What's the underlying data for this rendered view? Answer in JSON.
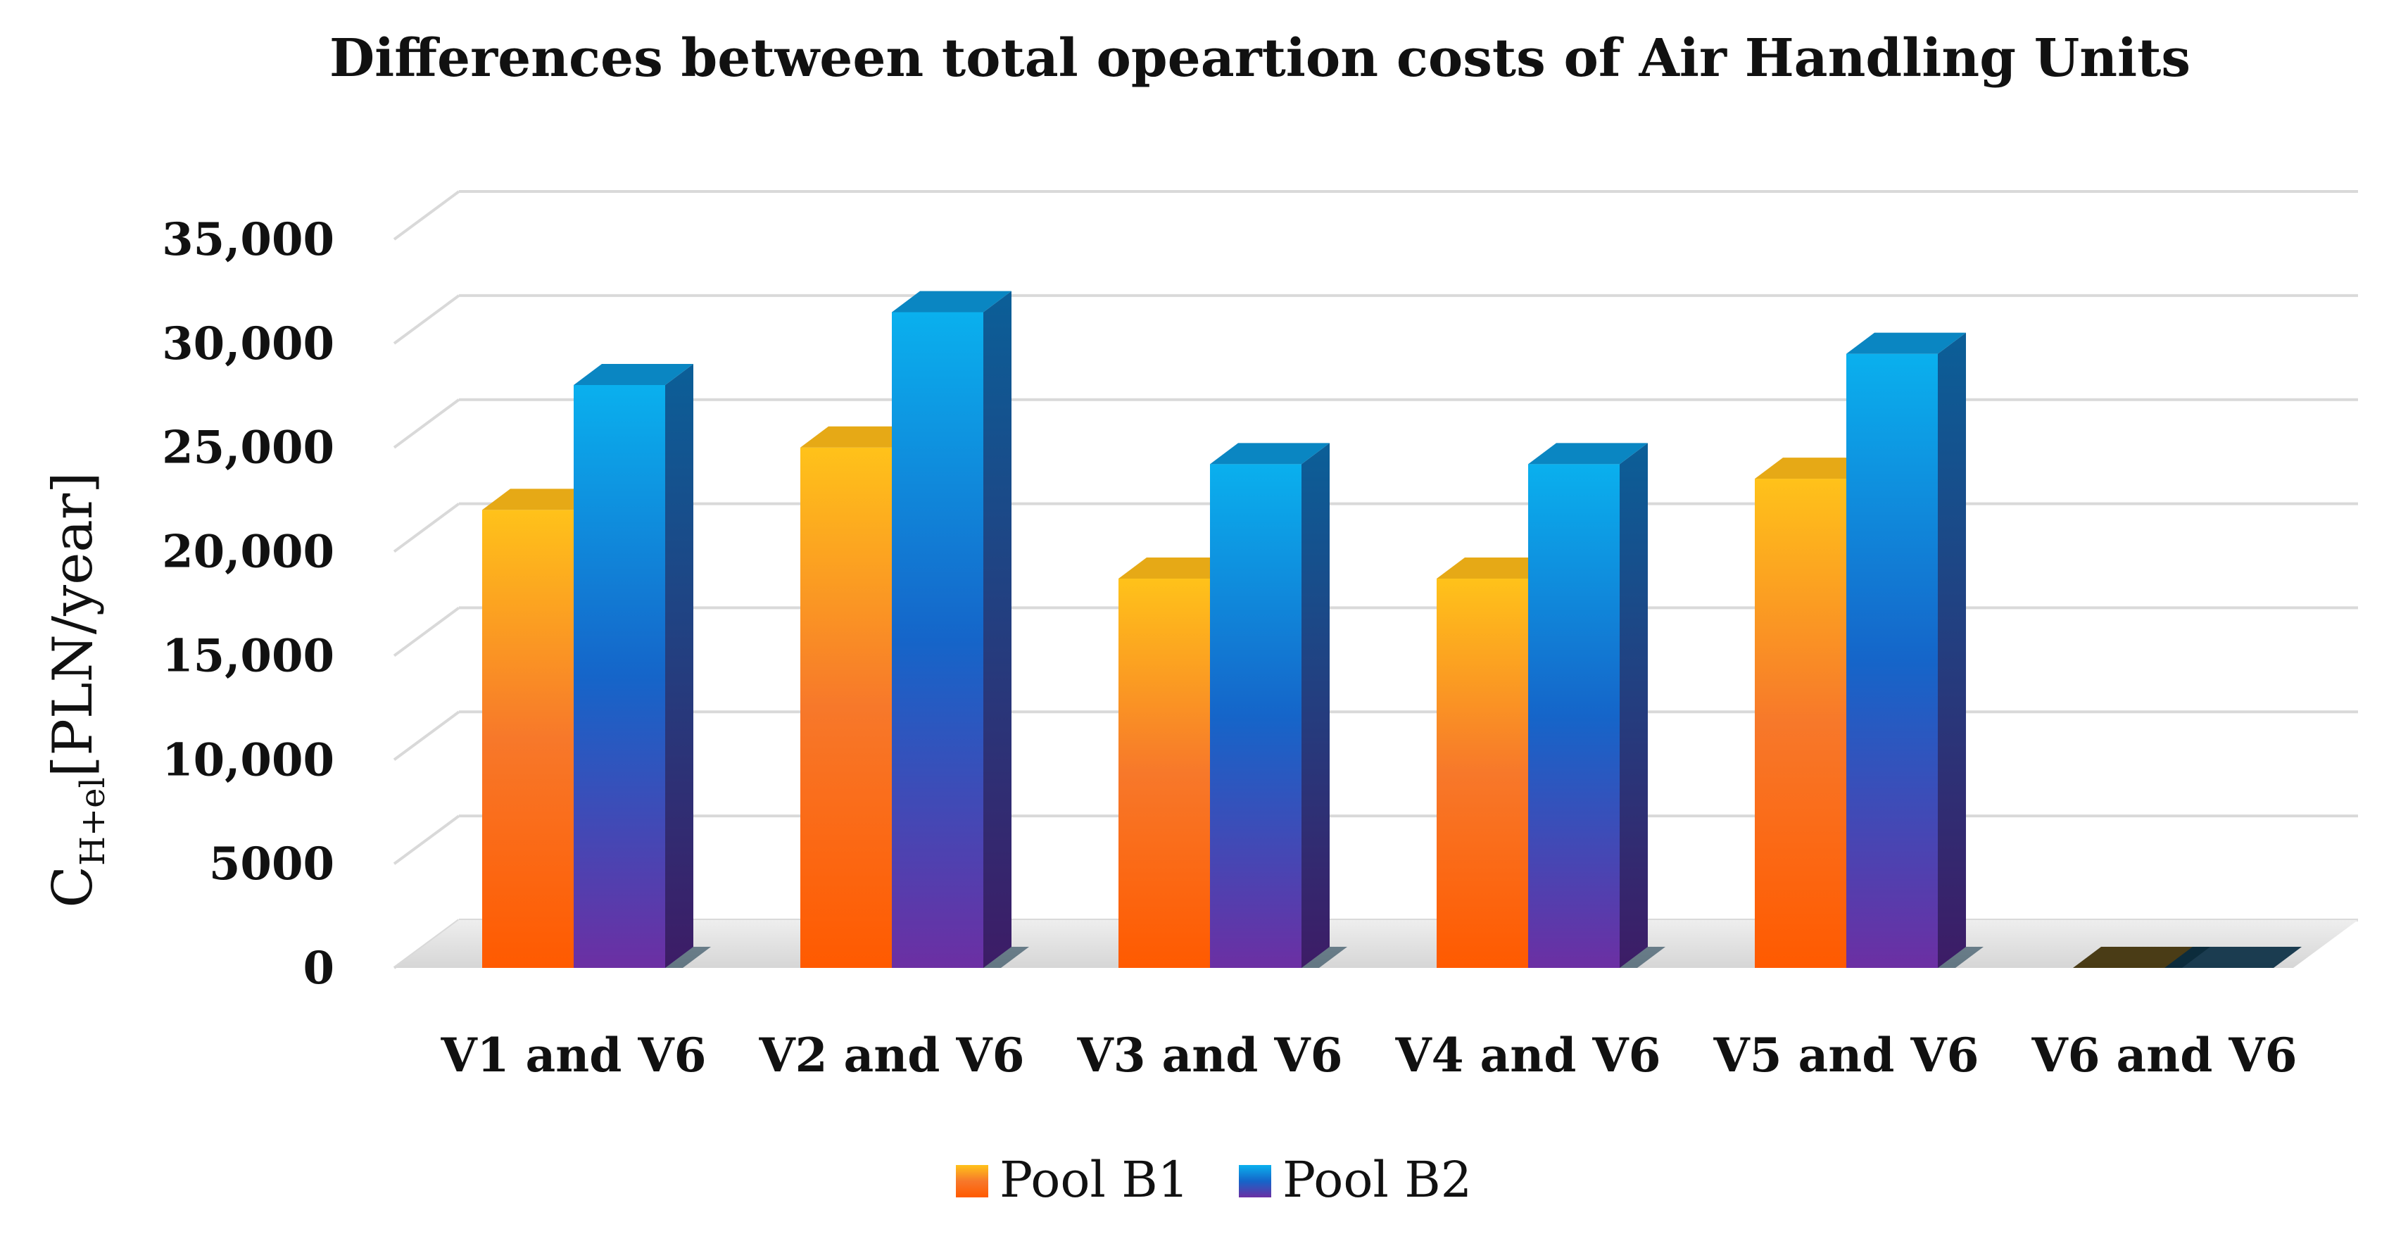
{
  "chart_data": {
    "type": "bar",
    "title": "Differences between total opeartion costs of Air Handling Units",
    "ylabel": {
      "main": "C",
      "subscript": "H+el",
      "unit": "[PLN/year]"
    },
    "xlabel": "",
    "ylim": [
      0,
      35000
    ],
    "yticks": [
      0,
      5000,
      10000,
      15000,
      20000,
      25000,
      30000,
      35000
    ],
    "ytick_labels": [
      "0",
      "5000",
      "10,000",
      "15,000",
      "20,000",
      "25,000",
      "30,000",
      "35,000"
    ],
    "categories": [
      "V1 and V6",
      "V2 and V6",
      "V3 and V6",
      "V4 and V6",
      "V5 and V6",
      "V6 and V6"
    ],
    "series": [
      {
        "name": "Pool B1",
        "values": [
          22000,
          25000,
          18700,
          18700,
          23500,
          0
        ],
        "gradient": [
          "#ffc21a",
          "#f7782a",
          "#ff5a00"
        ],
        "side": "#c88a12",
        "top": "#e6a916"
      },
      {
        "name": "Pool B2",
        "values": [
          28000,
          31500,
          24200,
          24200,
          29500,
          0
        ],
        "gradient": [
          "#0ab0ee",
          "#1565c9",
          "#6c2fa3"
        ],
        "side": "#0d4a80",
        "top": "#0a86c2"
      }
    ],
    "legend_position": "bottom-center",
    "grid": true
  }
}
